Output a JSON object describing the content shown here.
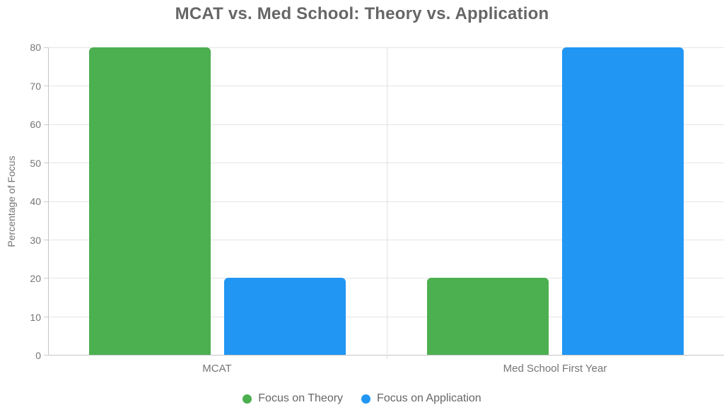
{
  "title": "MCAT vs. Med School: Theory vs. Application",
  "chart_data": {
    "type": "bar",
    "title": "MCAT vs. Med School: Theory vs. Application",
    "categories": [
      "MCAT",
      "Med School First Year"
    ],
    "series": [
      {
        "name": "Focus on Theory",
        "color": "#4CAF50",
        "values": [
          80,
          20
        ]
      },
      {
        "name": "Focus on Application",
        "color": "#2196F3",
        "values": [
          20,
          80
        ]
      }
    ],
    "xlabel": "",
    "ylabel": "Percentage of Focus",
    "ylim": [
      0,
      80
    ],
    "yticks": [
      0,
      10,
      20,
      30,
      40,
      50,
      60,
      70,
      80
    ],
    "grid": true,
    "legend_position": "bottom",
    "legend_marker": "circle"
  },
  "colors": {
    "title_text": "#666666",
    "tick_text": "#757575",
    "gridline": "#e5e5e5",
    "axis_line": "#c4c4c4"
  }
}
